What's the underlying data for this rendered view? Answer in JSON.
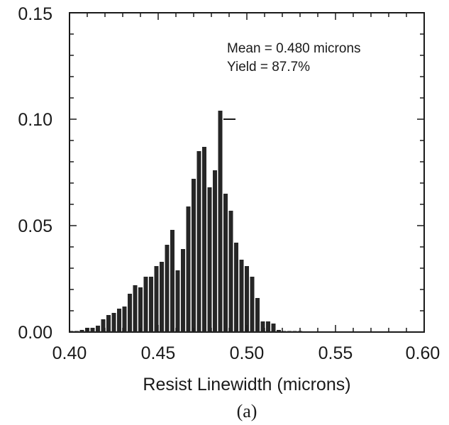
{
  "chart_data": {
    "type": "bar",
    "xlabel": "Resist Linewidth (microns)",
    "ylabel": "",
    "xlim": [
      0.4,
      0.6
    ],
    "ylim": [
      0.0,
      0.15
    ],
    "x_ticks": [
      "0.40",
      "0.45",
      "0.50",
      "0.55",
      "0.60"
    ],
    "y_ticks": [
      "0.00",
      "0.05",
      "0.10",
      "0.15"
    ],
    "annotations": [
      "Mean = 0.480 microns",
      "Yield = 87.7%"
    ],
    "caption": "(a)",
    "grid": false,
    "bar_color": "#262626",
    "x": [
      0.401,
      0.404,
      0.407,
      0.41,
      0.413,
      0.416,
      0.419,
      0.422,
      0.425,
      0.428,
      0.431,
      0.434,
      0.437,
      0.44,
      0.443,
      0.446,
      0.449,
      0.452,
      0.455,
      0.458,
      0.461,
      0.464,
      0.467,
      0.47,
      0.473,
      0.476,
      0.479,
      0.482,
      0.485,
      0.488,
      0.491,
      0.494,
      0.497,
      0.5,
      0.503,
      0.506,
      0.509,
      0.512,
      0.515,
      0.518,
      0.521,
      0.524,
      0.527,
      0.53
    ],
    "values": [
      0.0005,
      0.0005,
      0.001,
      0.002,
      0.002,
      0.003,
      0.006,
      0.008,
      0.009,
      0.011,
      0.012,
      0.018,
      0.022,
      0.021,
      0.026,
      0.026,
      0.031,
      0.033,
      0.041,
      0.048,
      0.029,
      0.039,
      0.059,
      0.072,
      0.085,
      0.087,
      0.068,
      0.076,
      0.104,
      0.065,
      0.057,
      0.042,
      0.034,
      0.031,
      0.026,
      0.016,
      0.005,
      0.005,
      0.004,
      0.001,
      0.0005,
      0.0005,
      0.0005,
      0.0005
    ]
  }
}
